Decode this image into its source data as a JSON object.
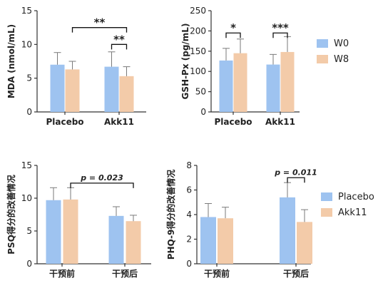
{
  "colors": {
    "blue": "#9ec3f0",
    "peach": "#f3cba9",
    "err": "#7a7a7a",
    "axis": "#333333"
  },
  "legend_top": [
    {
      "label": "W0",
      "color": "#9ec3f0"
    },
    {
      "label": "W8",
      "color": "#f3cba9"
    }
  ],
  "legend_bottom": [
    {
      "label": "Placebo",
      "color": "#9ec3f0"
    },
    {
      "label": "Akk11",
      "color": "#f3cba9"
    }
  ],
  "chart_data": [
    {
      "id": "mda",
      "type": "bar",
      "ylabel": "MDA (nmol/mL)",
      "ylim": [
        0,
        15
      ],
      "yticks": [
        0,
        5,
        10,
        15
      ],
      "categories": [
        "Placebo",
        "Akk11"
      ],
      "series": [
        {
          "name": "W0",
          "values": [
            7.0,
            6.7
          ],
          "errors": [
            1.8,
            2.2
          ]
        },
        {
          "name": "W8",
          "values": [
            6.3,
            5.3
          ],
          "errors": [
            1.2,
            1.4
          ]
        }
      ],
      "annotations": [
        {
          "text": "**",
          "from": [
            0,
            1
          ],
          "to": [
            1,
            1
          ],
          "y": 12.5
        },
        {
          "text": "**",
          "from": [
            1,
            0
          ],
          "to": [
            1,
            1
          ],
          "y": 10.0
        }
      ]
    },
    {
      "id": "gsh",
      "type": "bar",
      "ylabel": "GSH-Px (pg/mL)",
      "ylim": [
        0,
        250
      ],
      "yticks": [
        0,
        50,
        100,
        150,
        200,
        250
      ],
      "categories": [
        "Placebo",
        "Akk11"
      ],
      "series": [
        {
          "name": "W0",
          "values": [
            127,
            117
          ],
          "errors": [
            30,
            25
          ]
        },
        {
          "name": "W8",
          "values": [
            145,
            148
          ],
          "errors": [
            35,
            38
          ]
        }
      ],
      "annotations": [
        {
          "text": "*",
          "from": [
            0,
            0
          ],
          "to": [
            0,
            1
          ],
          "y": 195
        },
        {
          "text": "***",
          "from": [
            1,
            0
          ],
          "to": [
            1,
            1
          ],
          "y": 195
        }
      ]
    },
    {
      "id": "psq",
      "type": "bar",
      "ylabel": "PSQ得分的改善情况",
      "ylim": [
        0,
        15
      ],
      "yticks": [
        0,
        5,
        10,
        15
      ],
      "categories": [
        "干预前",
        "干预后"
      ],
      "series": [
        {
          "name": "Placebo",
          "values": [
            9.7,
            7.3
          ],
          "errors": [
            1.9,
            1.4
          ]
        },
        {
          "name": "Akk11",
          "values": [
            9.8,
            6.5
          ],
          "errors": [
            1.8,
            0.9
          ]
        }
      ],
      "annotations": [
        {
          "text": "p = 0.023",
          "from": [
            0,
            1
          ],
          "to": [
            1,
            1
          ],
          "y": 12.3
        }
      ]
    },
    {
      "id": "phq",
      "type": "bar",
      "ylabel": "PHQ-9得分的改善情况",
      "ylim": [
        0,
        8
      ],
      "yticks": [
        0,
        2,
        4,
        6,
        8
      ],
      "categories": [
        "干预前",
        "干预后"
      ],
      "series": [
        {
          "name": "Placebo",
          "values": [
            3.8,
            5.4
          ],
          "errors": [
            1.1,
            1.2
          ]
        },
        {
          "name": "Akk11",
          "values": [
            3.7,
            3.4
          ],
          "errors": [
            0.9,
            1.0
          ]
        }
      ],
      "annotations": [
        {
          "text": "p = 0.011",
          "from": [
            1,
            0
          ],
          "to": [
            1,
            1
          ],
          "y": 7.0
        }
      ]
    }
  ]
}
